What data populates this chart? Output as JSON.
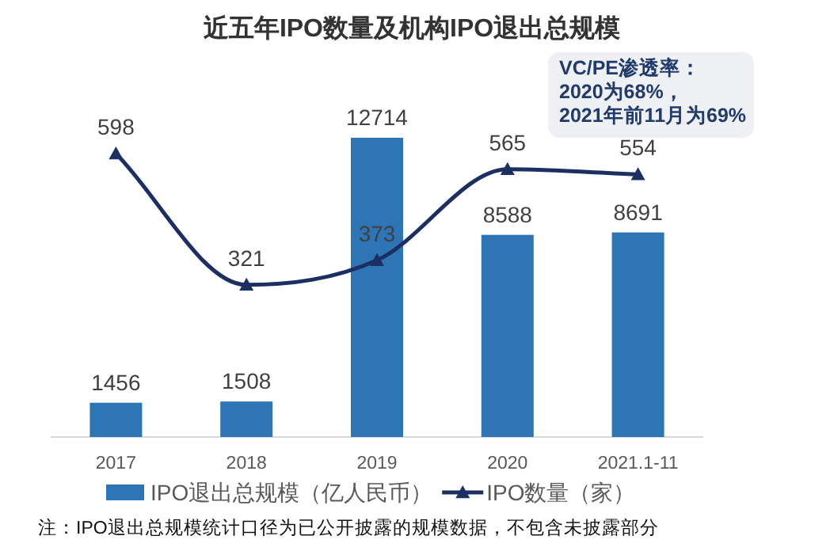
{
  "chart_data": {
    "type": "bar",
    "title": "近五年IPO数量及机构IPO退出总规模",
    "categories": [
      "2017",
      "2018",
      "2019",
      "2020",
      "2021.1-11"
    ],
    "series": [
      {
        "name": "IPO退出总规模（亿人民币）",
        "color": "#2e75b6",
        "values": [
          1456,
          1508,
          12714,
          8588,
          8691
        ]
      },
      {
        "name": "IPO数量（家）",
        "type": "line",
        "axis": "y2",
        "color": "#1b2f63",
        "values": [
          598,
          321,
          373,
          565,
          554
        ]
      }
    ],
    "marker": "triangle",
    "data_labels": true,
    "legend": "bottom",
    "annotations": [
      "VC/PE渗透率：\n2020为68%，\n2021年前11月为69%",
      "注：IPO退出总规模统计口径为已公开披露的规模数据，不包含未披露部分"
    ]
  }
}
